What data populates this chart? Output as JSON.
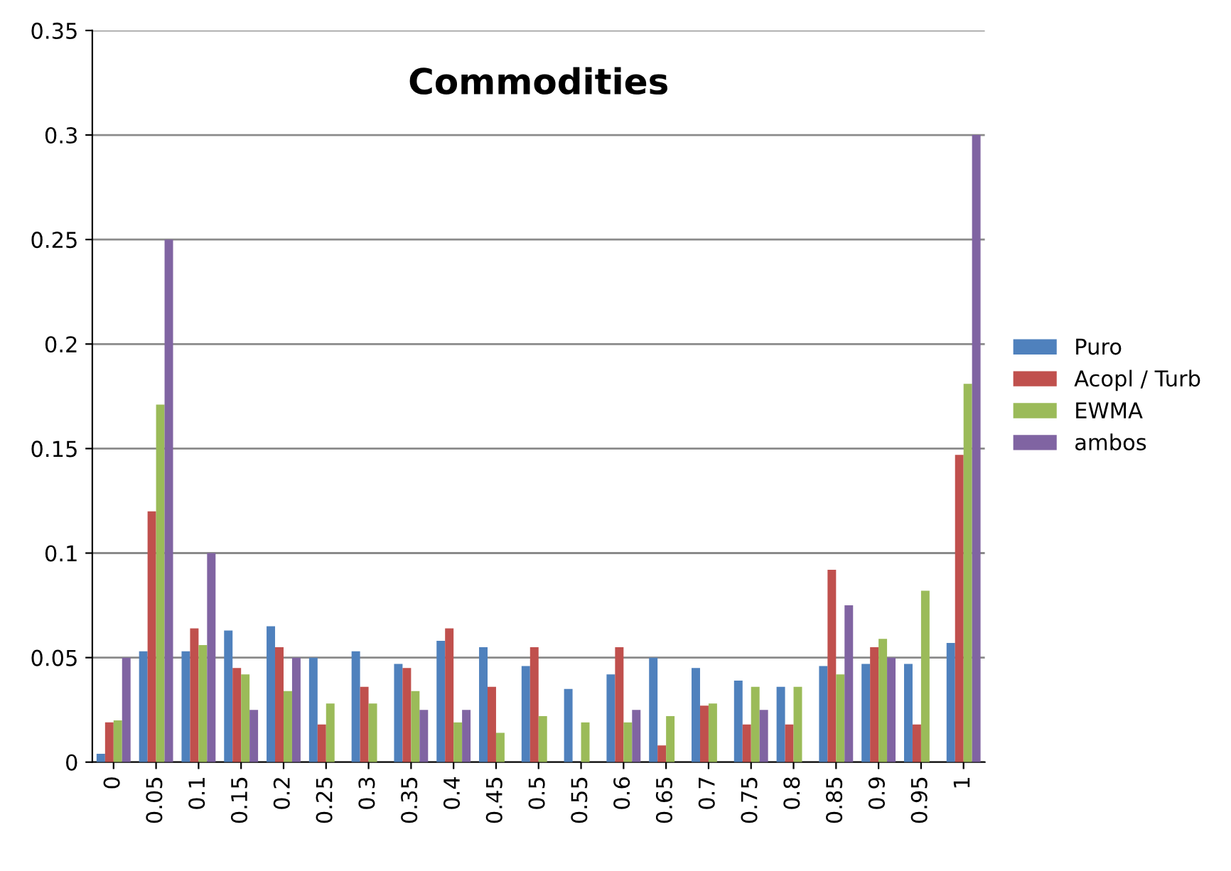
{
  "chart_data": {
    "type": "bar",
    "title": "Commodities",
    "categories": [
      "0",
      "0.05",
      "0.1",
      "0.15",
      "0.2",
      "0.25",
      "0.3",
      "0.35",
      "0.4",
      "0.45",
      "0.5",
      "0.55",
      "0.6",
      "0.65",
      "0.7",
      "0.75",
      "0.8",
      "0.85",
      "0.9",
      "0.95",
      "1"
    ],
    "series": [
      {
        "name": "Puro",
        "color": "#4f81bd",
        "values": [
          0.004,
          0.053,
          0.053,
          0.063,
          0.065,
          0.05,
          0.053,
          0.047,
          0.058,
          0.055,
          0.046,
          0.035,
          0.042,
          0.05,
          0.045,
          0.039,
          0.036,
          0.046,
          0.047,
          0.047,
          0.057
        ]
      },
      {
        "name": "Acopl / Turb",
        "color": "#c0504d",
        "values": [
          0.019,
          0.12,
          0.064,
          0.045,
          0.055,
          0.018,
          0.036,
          0.045,
          0.064,
          0.036,
          0.055,
          0,
          0.055,
          0.008,
          0.027,
          0.018,
          0.018,
          0.092,
          0.055,
          0.018,
          0.147
        ]
      },
      {
        "name": "EWMA",
        "color": "#9bbb59",
        "values": [
          0.02,
          0.171,
          0.056,
          0.042,
          0.034,
          0.028,
          0.028,
          0.034,
          0.019,
          0.014,
          0.022,
          0.019,
          0.019,
          0.022,
          0.028,
          0.036,
          0.036,
          0.042,
          0.059,
          0.082,
          0.181
        ]
      },
      {
        "name": "ambos",
        "color": "#8064a2",
        "values": [
          0.05,
          0.25,
          0.1,
          0.025,
          0.05,
          0,
          0,
          0.025,
          0.025,
          0,
          0,
          0,
          0.025,
          0,
          0,
          0.025,
          0,
          0.075,
          0.05,
          0,
          0.3
        ]
      }
    ],
    "ylim": [
      0,
      0.35
    ],
    "yticks": [
      0,
      0.05,
      0.1,
      0.15,
      0.2,
      0.25,
      0.3,
      0.35
    ],
    "grid": "y",
    "legend": "right"
  }
}
